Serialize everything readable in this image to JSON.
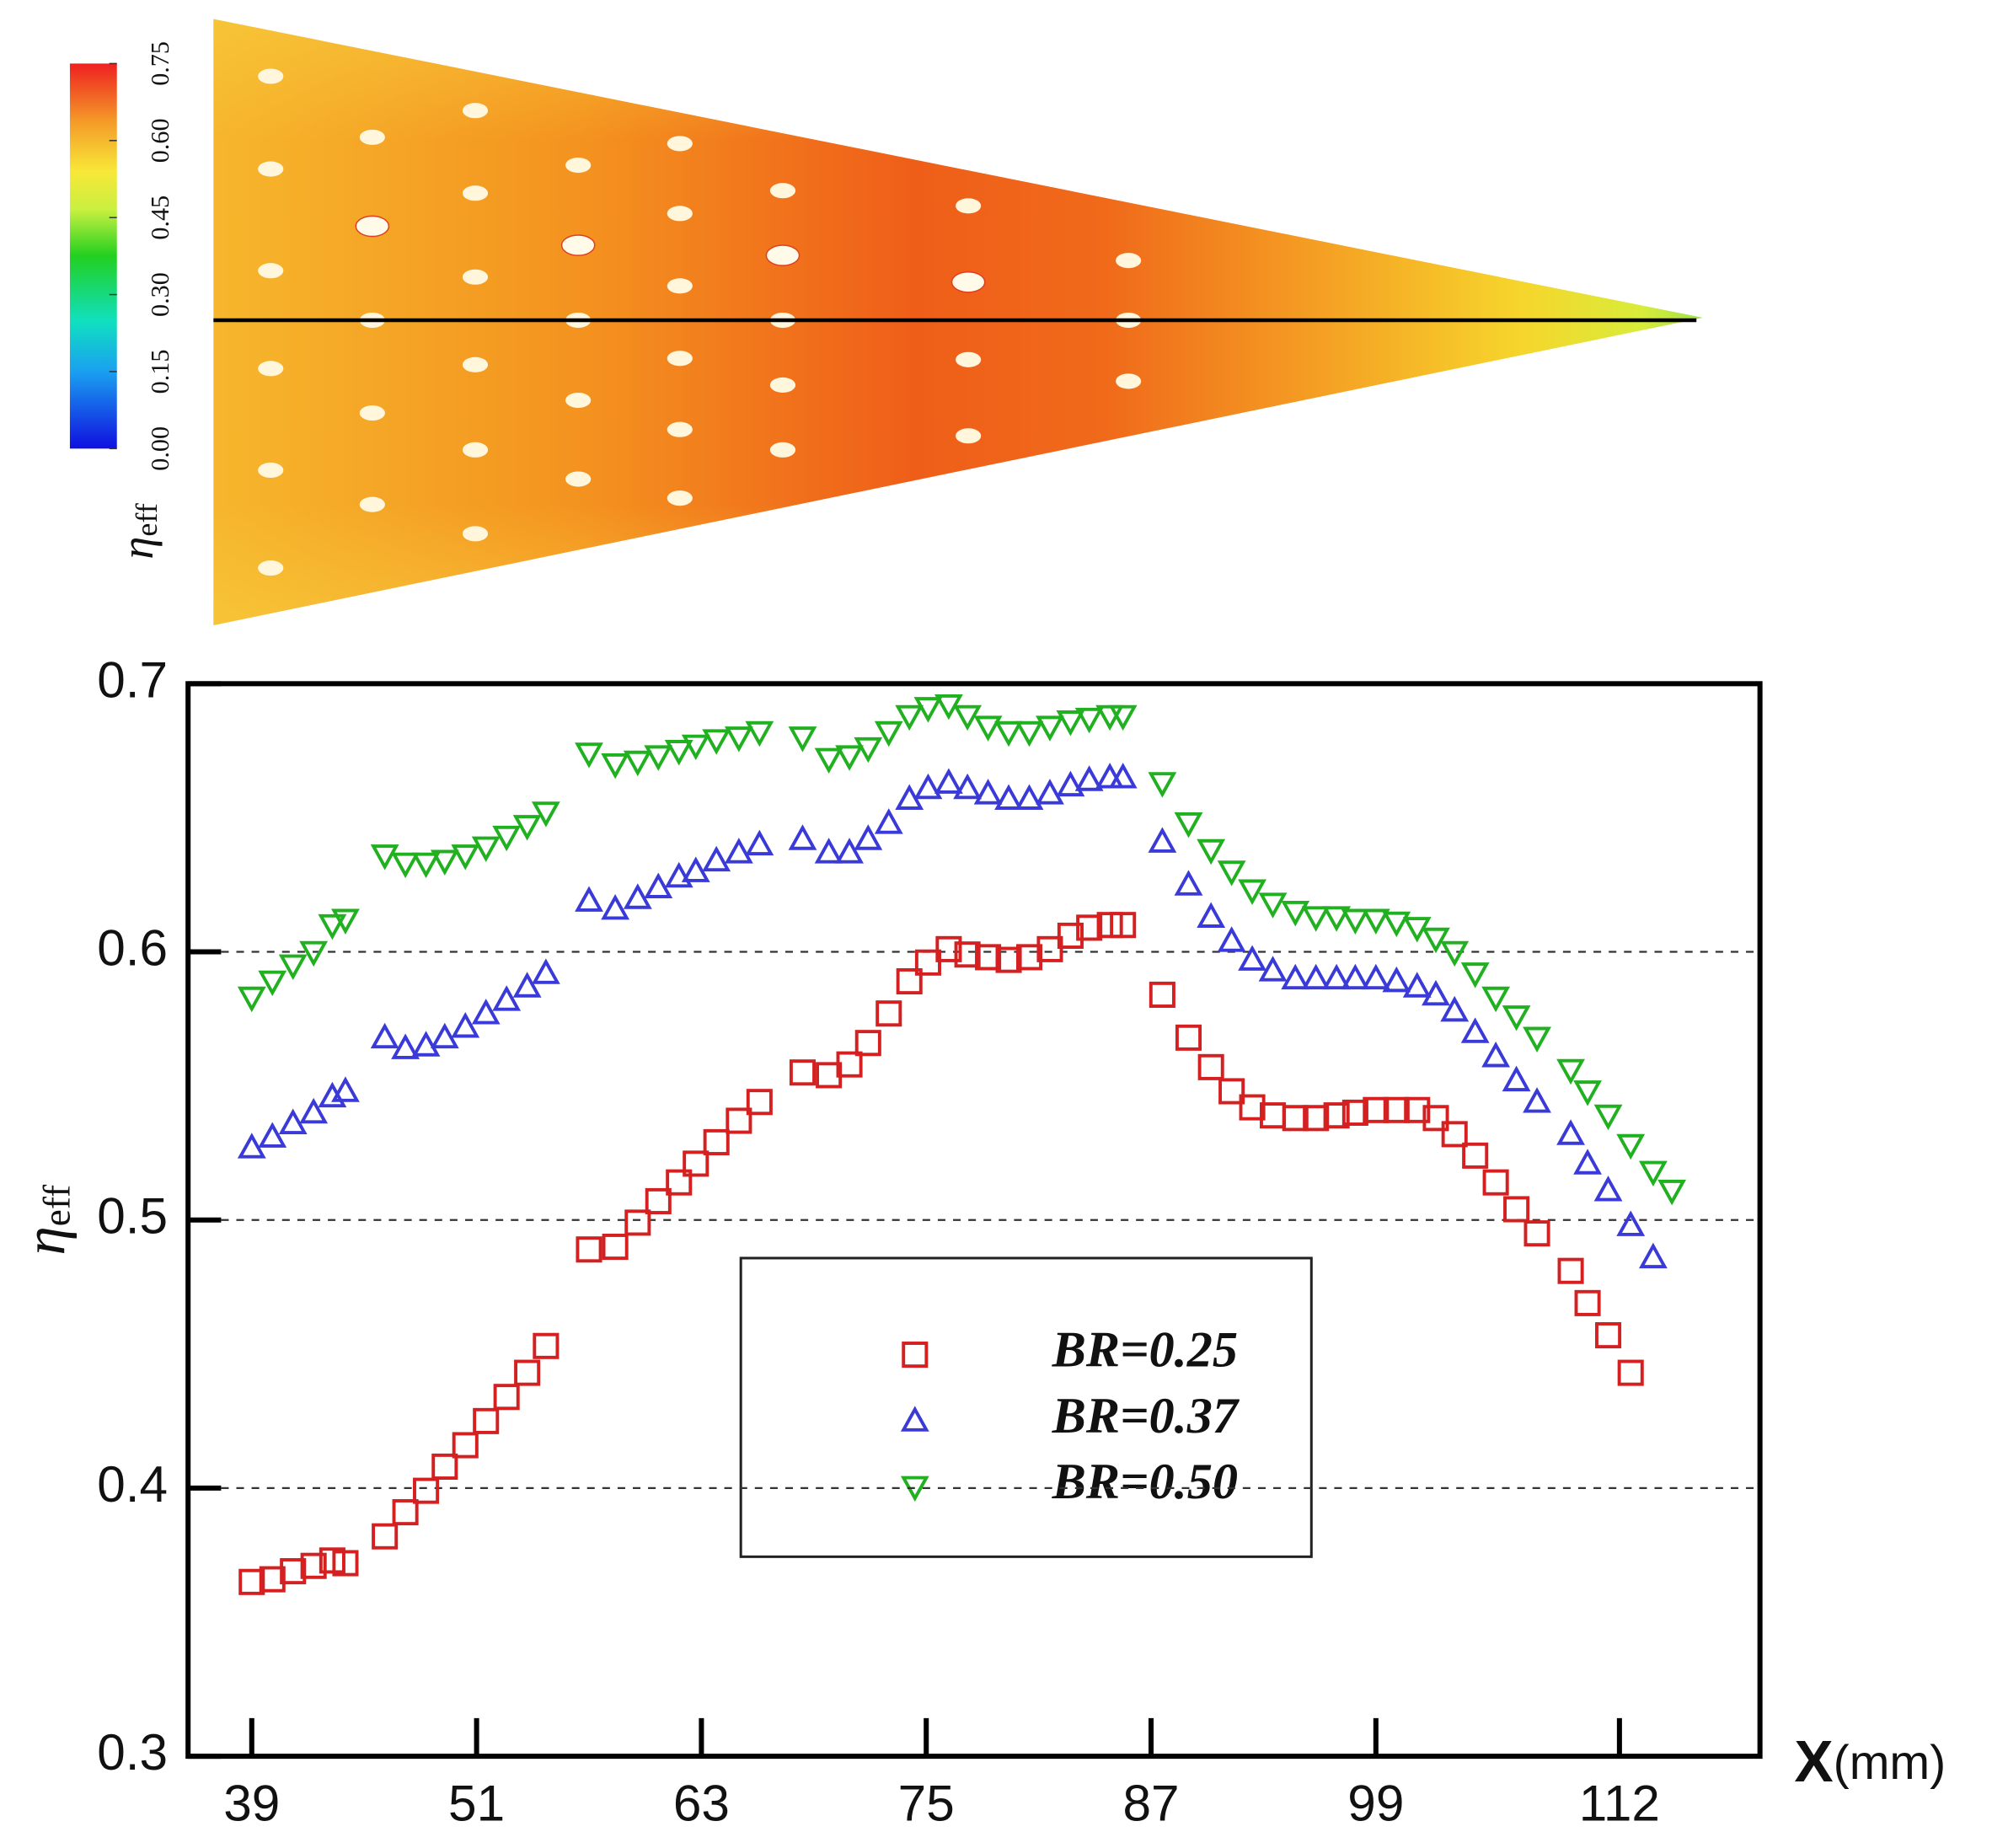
{
  "chart_data": [
    {
      "type": "contour",
      "colorbar_label": "η",
      "colorbar_label_subscript": "eff",
      "clim": [
        0,
        0.75
      ],
      "colorbar_ticks": [
        {
          "value": 0,
          "label": "0.00"
        },
        0.15,
        {
          "value": 0.3,
          "label": "0.30"
        },
        0.45,
        {
          "value": 0.6,
          "label": "0.60"
        },
        0.75
      ]
    },
    {
      "type": "scatter",
      "ylabel": "η",
      "ylabel_subscript": "eff",
      "xlabel": "X",
      "xlabel_unit": "(mm)",
      "xlim": [
        35.6,
        119.5
      ],
      "ylim": [
        0.3,
        0.7
      ],
      "xticks": [
        39,
        51,
        63,
        75,
        87,
        99,
        112
      ],
      "yticks": [
        0.3,
        0.4,
        0.5,
        0.6,
        0.7
      ],
      "grid": true,
      "legend": "center",
      "series": [
        {
          "name": "BR=0.25",
          "color": "#d42020",
          "marker": "square",
          "x": [
            39,
            40.1,
            41.2,
            42.3,
            43.3,
            44.0,
            46.1,
            47.2,
            48.3,
            49.3,
            50.4,
            51.5,
            52.6,
            53.7,
            54.7,
            57.0,
            58.4,
            59.6,
            60.7,
            61.8,
            62.7,
            63.8,
            65.0,
            66.1,
            68.4,
            69.8,
            70.9,
            71.9,
            73.0,
            74.1,
            75.1,
            76.2,
            77.2,
            78.3,
            79.4,
            80.5,
            81.6,
            82.7,
            83.7,
            84.8,
            85.5,
            87.6,
            89.0,
            90.2,
            91.3,
            92.4,
            93.5,
            94.7,
            95.8,
            96.9,
            97.9,
            99.0,
            100.1,
            101.2,
            102.2,
            103.2,
            104.3,
            105.4,
            106.5,
            107.6,
            109.4,
            110.3,
            111.4,
            112.6
          ],
          "values": [
            0.365,
            0.366,
            0.369,
            0.371,
            0.373,
            0.372,
            0.382,
            0.391,
            0.399,
            0.408,
            0.416,
            0.425,
            0.434,
            0.443,
            0.453,
            0.489,
            0.49,
            0.499,
            0.507,
            0.514,
            0.521,
            0.529,
            0.537,
            0.544,
            0.555,
            0.554,
            0.558,
            0.566,
            0.577,
            0.589,
            0.596,
            0.601,
            0.599,
            0.598,
            0.597,
            0.598,
            0.601,
            0.606,
            0.609,
            0.61,
            0.61,
            0.584,
            0.568,
            0.557,
            0.548,
            0.542,
            0.539,
            0.538,
            0.538,
            0.539,
            0.54,
            0.541,
            0.541,
            0.541,
            0.538,
            0.532,
            0.524,
            0.514,
            0.504,
            0.495,
            0.481,
            0.469,
            0.457,
            0.443
          ]
        },
        {
          "name": "BR=0.37",
          "color": "#3a3ad8",
          "marker": "triangle-up",
          "x": [
            39,
            40.1,
            41.2,
            42.3,
            43.3,
            44.0,
            46.1,
            47.2,
            48.3,
            49.3,
            50.4,
            51.5,
            52.6,
            53.7,
            54.7,
            57.0,
            58.4,
            59.6,
            60.7,
            61.8,
            62.7,
            63.8,
            65.0,
            66.1,
            68.4,
            69.8,
            70.9,
            71.9,
            73.0,
            74.1,
            75.1,
            76.2,
            77.2,
            78.3,
            79.4,
            80.5,
            81.6,
            82.7,
            83.7,
            84.8,
            85.5,
            87.6,
            89.0,
            90.2,
            91.3,
            92.4,
            93.5,
            94.7,
            95.8,
            96.9,
            97.9,
            99.0,
            100.1,
            101.2,
            102.2,
            103.2,
            104.3,
            105.4,
            106.5,
            107.6,
            109.4,
            110.3,
            111.4,
            112.6,
            113.8
          ],
          "values": [
            0.527,
            0.531,
            0.536,
            0.54,
            0.546,
            0.548,
            0.568,
            0.564,
            0.565,
            0.568,
            0.572,
            0.577,
            0.582,
            0.587,
            0.592,
            0.619,
            0.616,
            0.62,
            0.624,
            0.628,
            0.63,
            0.634,
            0.637,
            0.64,
            0.642,
            0.637,
            0.637,
            0.642,
            0.648,
            0.657,
            0.661,
            0.663,
            0.661,
            0.659,
            0.657,
            0.657,
            0.659,
            0.662,
            0.664,
            0.665,
            0.665,
            0.641,
            0.625,
            0.613,
            0.604,
            0.597,
            0.593,
            0.59,
            0.59,
            0.59,
            0.59,
            0.59,
            0.589,
            0.587,
            0.584,
            0.578,
            0.57,
            0.561,
            0.552,
            0.544,
            0.532,
            0.521,
            0.511,
            0.498,
            0.486
          ]
        },
        {
          "name": "BR=0.50",
          "color": "#20b020",
          "marker": "triangle-down",
          "x": [
            39,
            40.1,
            41.2,
            42.3,
            43.3,
            44.0,
            46.1,
            47.2,
            48.3,
            49.3,
            50.4,
            51.5,
            52.6,
            53.7,
            54.7,
            57.0,
            58.4,
            59.6,
            60.7,
            61.8,
            62.7,
            63.8,
            65.0,
            66.1,
            68.4,
            69.8,
            70.9,
            71.9,
            73.0,
            74.1,
            75.1,
            76.2,
            77.2,
            78.3,
            79.4,
            80.5,
            81.6,
            82.7,
            83.7,
            84.8,
            85.5,
            87.6,
            89.0,
            90.2,
            91.3,
            92.4,
            93.5,
            94.7,
            95.8,
            96.9,
            97.9,
            99.0,
            100.1,
            101.2,
            102.2,
            103.2,
            104.3,
            105.4,
            106.5,
            107.6,
            109.4,
            110.3,
            111.4,
            112.6,
            113.8,
            114.8
          ],
          "values": [
            0.583,
            0.589,
            0.595,
            0.6,
            0.61,
            0.612,
            0.636,
            0.633,
            0.633,
            0.634,
            0.636,
            0.639,
            0.643,
            0.647,
            0.652,
            0.674,
            0.67,
            0.671,
            0.673,
            0.675,
            0.677,
            0.679,
            0.68,
            0.682,
            0.68,
            0.672,
            0.673,
            0.676,
            0.682,
            0.688,
            0.691,
            0.692,
            0.688,
            0.684,
            0.682,
            0.682,
            0.684,
            0.686,
            0.687,
            0.688,
            0.688,
            0.663,
            0.648,
            0.638,
            0.63,
            0.623,
            0.618,
            0.615,
            0.613,
            0.613,
            0.612,
            0.612,
            0.611,
            0.609,
            0.605,
            0.6,
            0.592,
            0.583,
            0.576,
            0.568,
            0.556,
            0.548,
            0.539,
            0.528,
            0.518,
            0.511
          ]
        }
      ]
    }
  ]
}
